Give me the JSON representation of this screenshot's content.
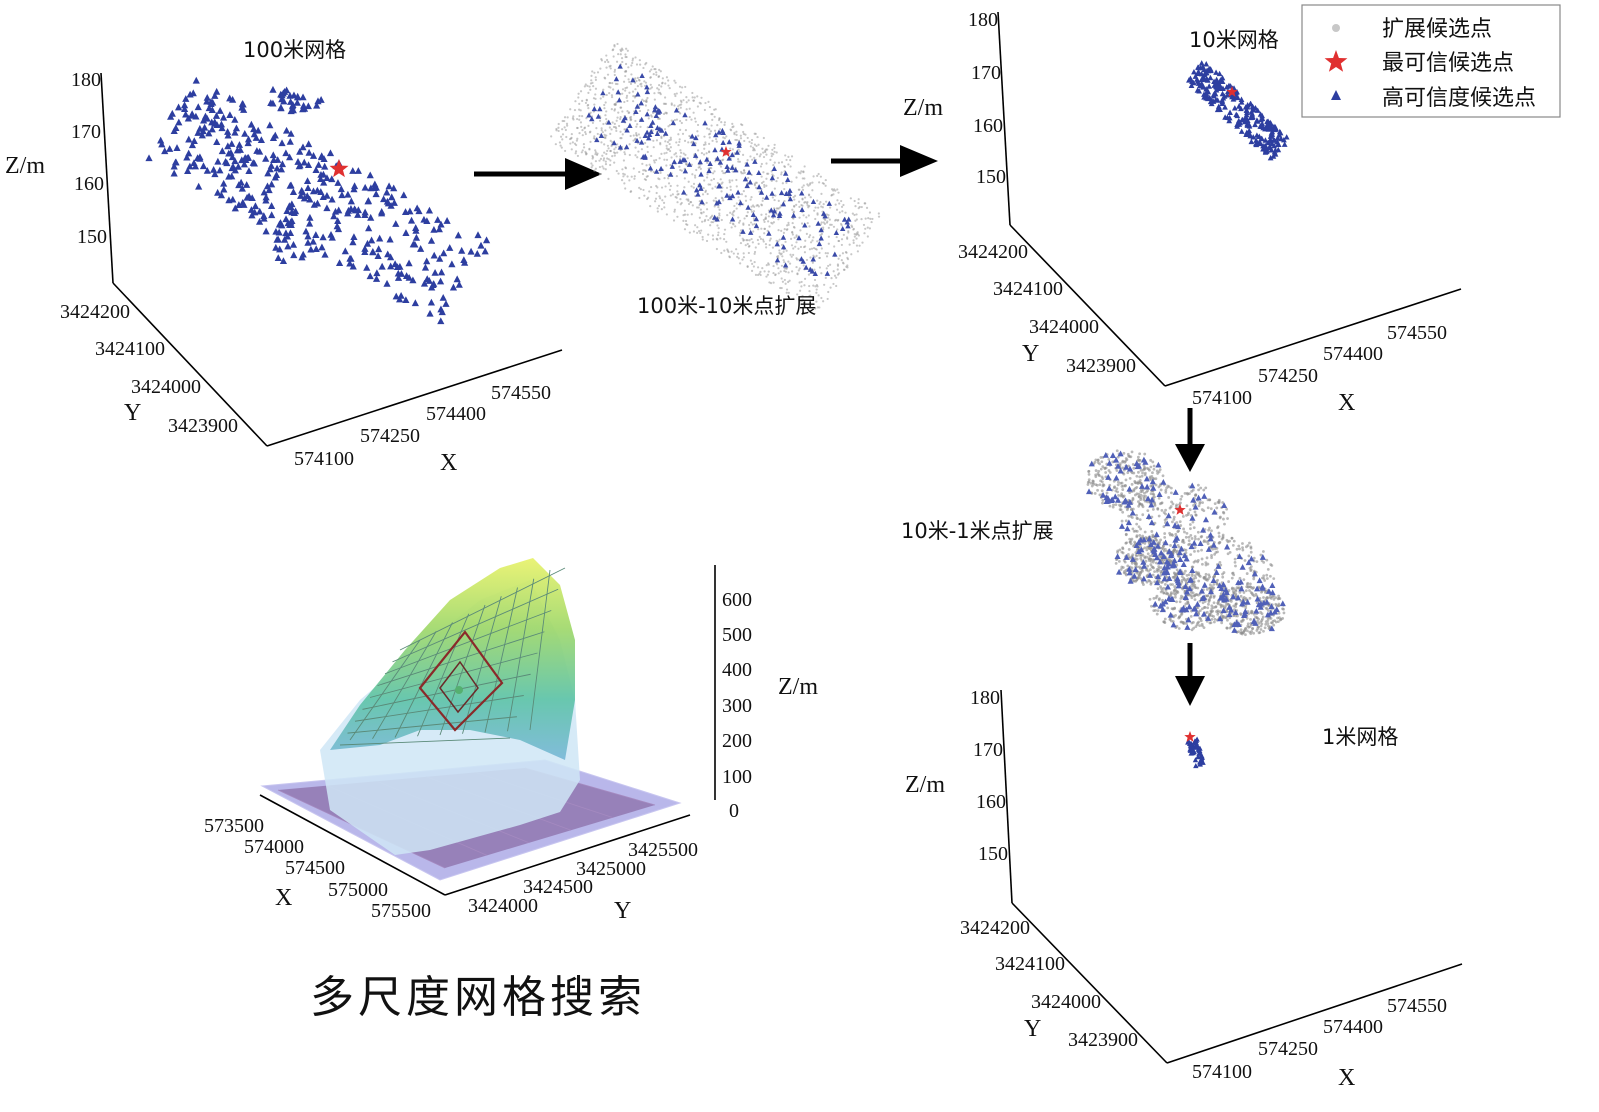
{
  "title": "多尺度网格搜索",
  "legend": {
    "items": [
      {
        "label": "扩展候选点",
        "color": "#c8c8c8",
        "marker": "dot"
      },
      {
        "label": "最可信候选点",
        "color": "#e03030",
        "marker": "star"
      },
      {
        "label": "高可信度候选点",
        "color": "#2d3ea0",
        "marker": "triangle"
      }
    ]
  },
  "panels": {
    "p100": {
      "label": "100米网格",
      "z_axis": "Z/m",
      "y_axis": "Y",
      "x_axis": "X",
      "z_ticks": [
        "180",
        "170",
        "160",
        "150"
      ],
      "y_ticks": [
        "3424200",
        "3424100",
        "3424000",
        "3423900"
      ],
      "x_ticks": [
        "574100",
        "574250",
        "574400",
        "574550"
      ]
    },
    "p100_10": {
      "label": "100米-10米点扩展"
    },
    "p10": {
      "label": "10米网格",
      "z_axis": "Z/m",
      "y_axis": "Y",
      "x_axis": "X",
      "z_ticks": [
        "180",
        "170",
        "160",
        "150"
      ],
      "y_ticks": [
        "3424200",
        "3424100",
        "3424000",
        "3423900"
      ],
      "x_ticks": [
        "574100",
        "574250",
        "574400",
        "574550"
      ]
    },
    "p10_1": {
      "label": "10米-1米点扩展"
    },
    "p1": {
      "label": "1米网格",
      "z_axis": "Z/m",
      "y_axis": "Y",
      "x_axis": "X",
      "z_ticks": [
        "180",
        "170",
        "160",
        "150"
      ],
      "y_ticks": [
        "3424200",
        "3424100",
        "3424000",
        "3423900"
      ],
      "x_ticks": [
        "574100",
        "574250",
        "574400",
        "574550"
      ]
    },
    "terrain": {
      "z_axis": "Z/m",
      "x_axis": "X",
      "y_axis": "Y",
      "z_ticks": [
        "600",
        "500",
        "400",
        "300",
        "200",
        "100",
        "0"
      ],
      "x_ticks": [
        "573500",
        "574000",
        "574500",
        "575000",
        "575500"
      ],
      "y_ticks": [
        "3425500",
        "3425000",
        "3424500",
        "3424000"
      ]
    }
  }
}
